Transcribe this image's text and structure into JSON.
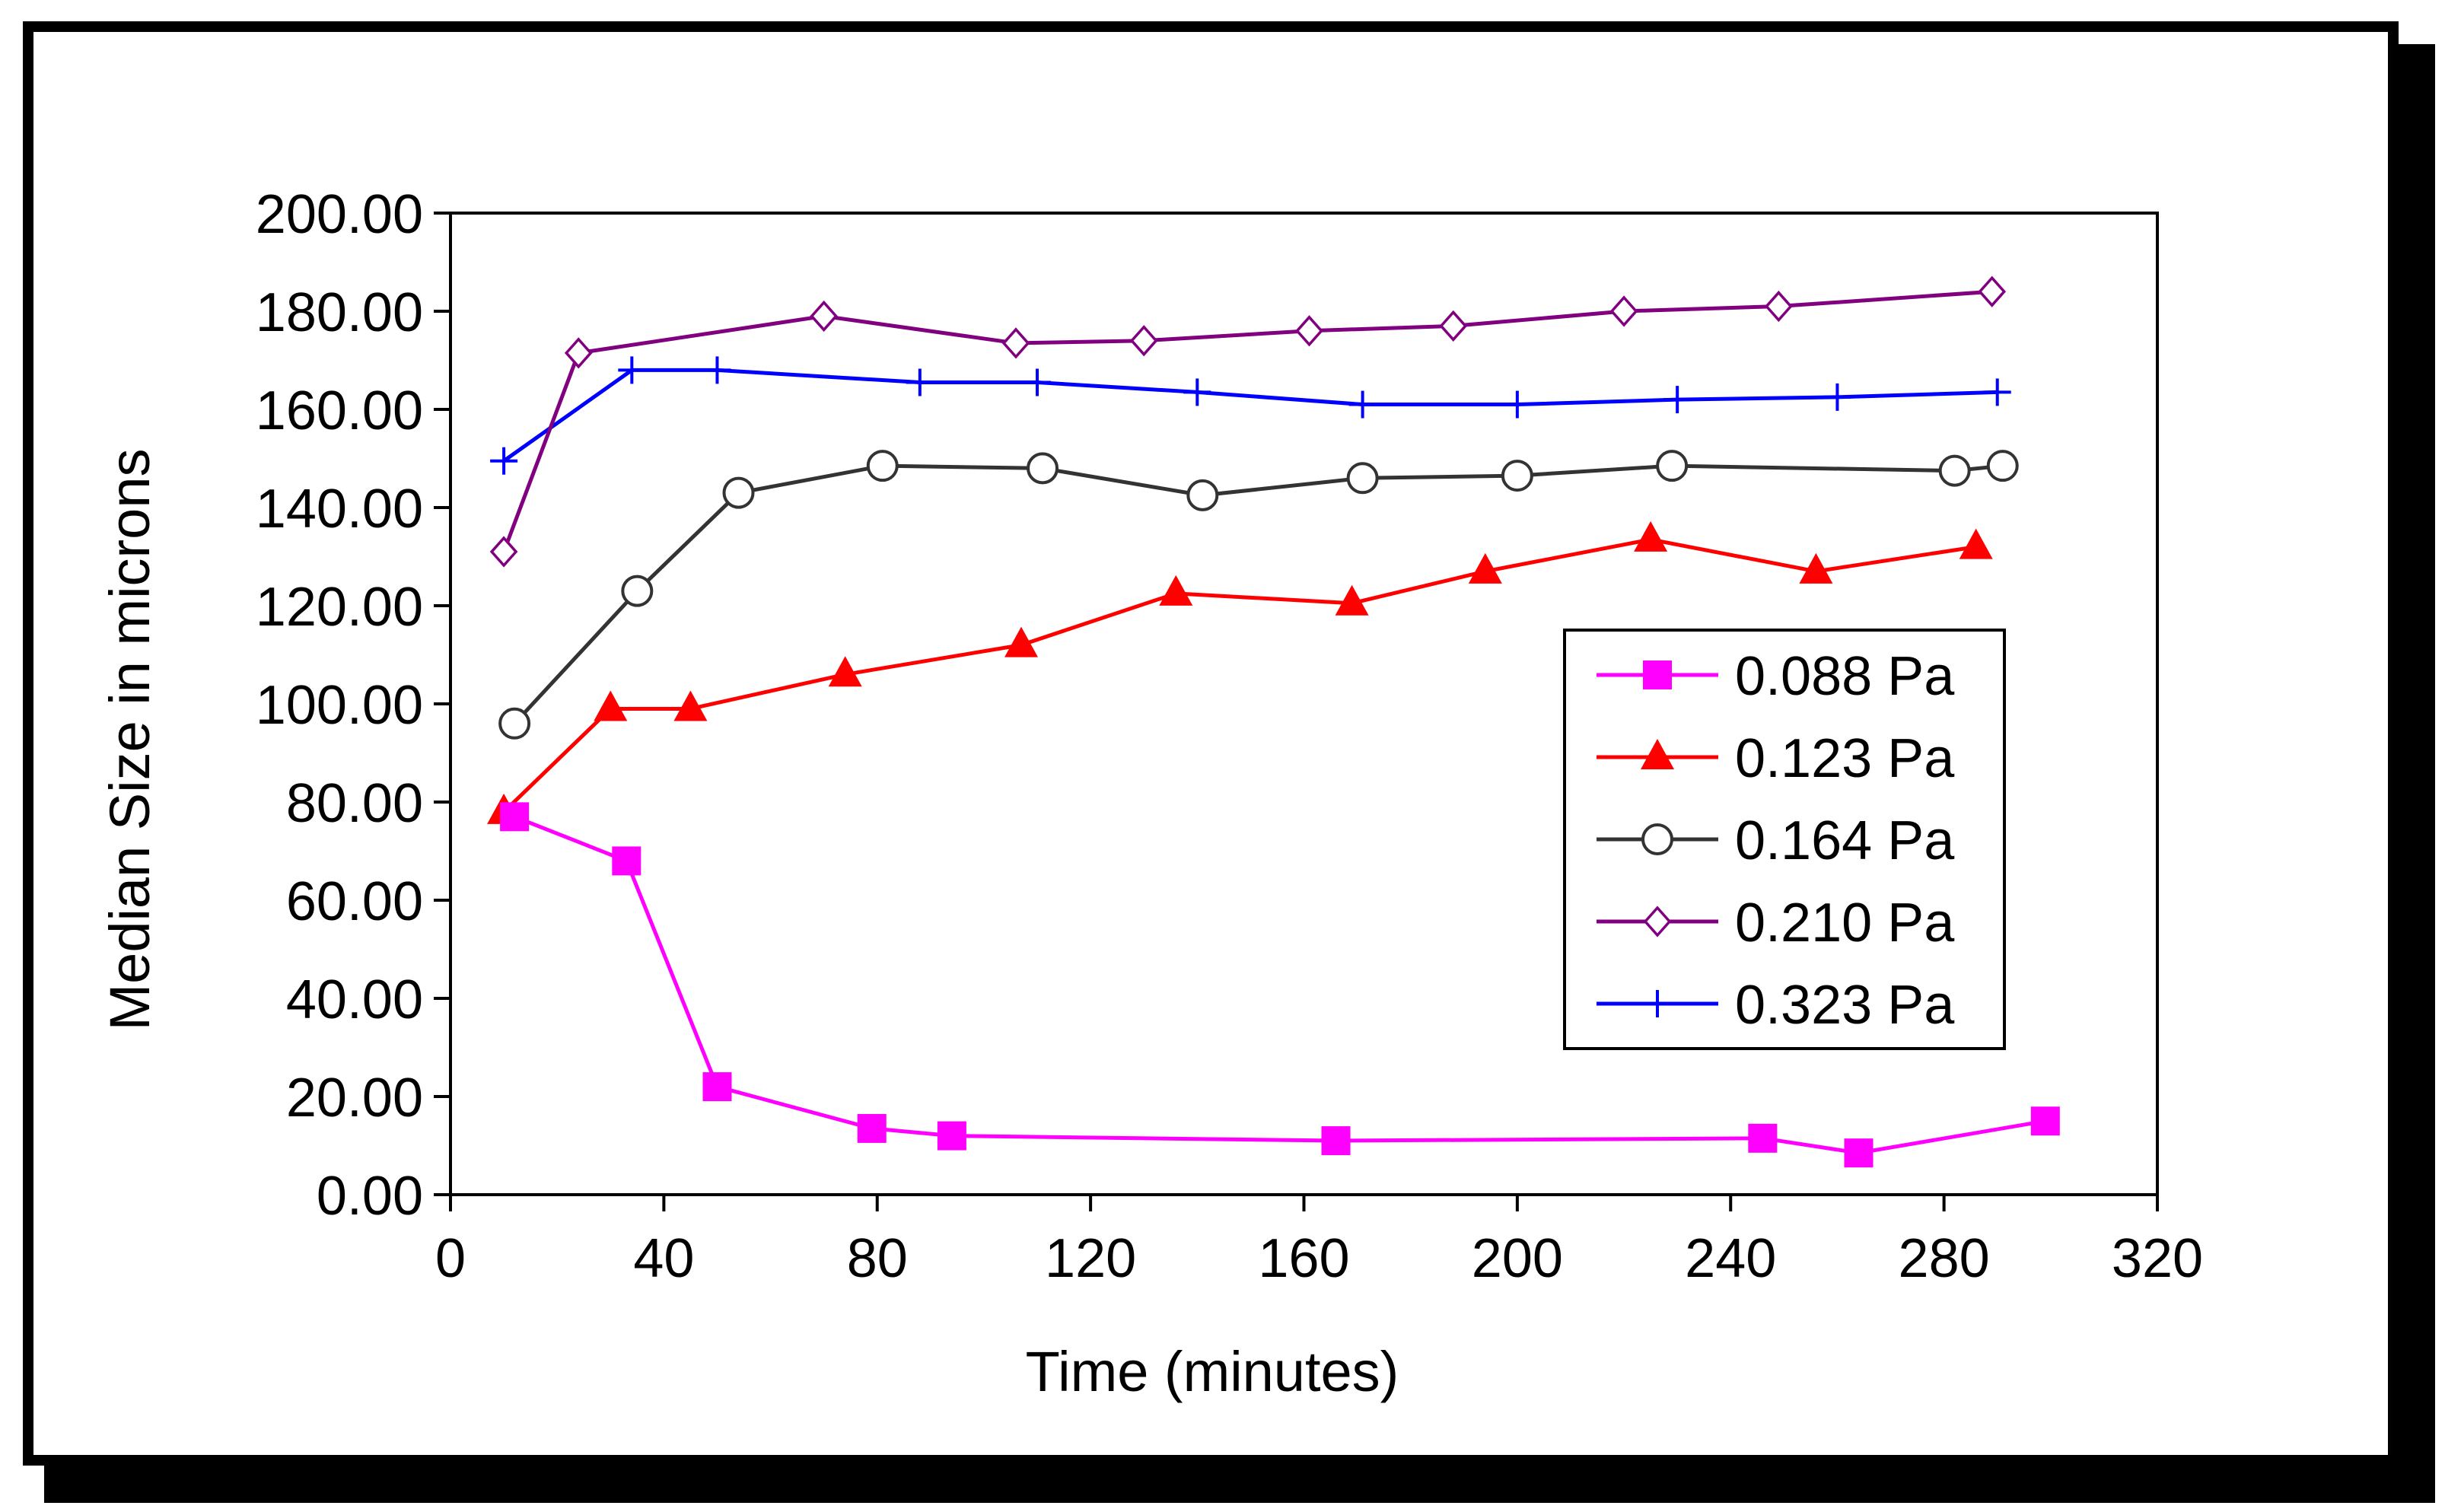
{
  "chart_data": {
    "type": "line",
    "title": "",
    "xlabel": "Time (minutes)",
    "ylabel": "Median Size in microns",
    "xlim": [
      0,
      320
    ],
    "ylim": [
      0,
      200
    ],
    "x_ticks": [
      0,
      40,
      80,
      120,
      160,
      200,
      240,
      280,
      320
    ],
    "y_ticks": [
      0,
      20,
      40,
      60,
      80,
      100,
      120,
      140,
      160,
      180,
      200
    ],
    "y_tick_labels": [
      "0.00",
      "20.00",
      "40.00",
      "60.00",
      "80.00",
      "100.00",
      "120.00",
      "140.00",
      "160.00",
      "180.00",
      "200.00"
    ],
    "legend_position": "right-middle",
    "series": [
      {
        "name": "0.088 Pa",
        "color": "#ff00ff",
        "marker": "filled-square",
        "x": [
          12,
          33,
          50,
          79,
          94,
          166,
          246,
          264,
          299
        ],
        "y": [
          77,
          68,
          22,
          13.5,
          12,
          11,
          11.5,
          8.5,
          15
        ]
      },
      {
        "name": "0.123 Pa",
        "color": "#ff0000",
        "marker": "filled-triangle",
        "x": [
          10,
          30,
          45,
          74,
          107,
          136,
          169,
          194,
          225,
          256,
          286
        ],
        "y": [
          78,
          99,
          99,
          106,
          112,
          122.5,
          120.5,
          127,
          133.5,
          127,
          132
        ]
      },
      {
        "name": "0.164 Pa",
        "color": "#333333",
        "marker": "open-circle",
        "x": [
          12,
          35,
          54,
          81,
          111,
          141,
          171,
          200,
          229,
          282,
          291
        ],
        "y": [
          96,
          123,
          143,
          148.5,
          148,
          142.5,
          146,
          146.5,
          148.5,
          147.5,
          148.5
        ]
      },
      {
        "name": "0.210 Pa",
        "color": "#800080",
        "marker": "open-diamond",
        "x": [
          10,
          24,
          70,
          106,
          130,
          161,
          188,
          220,
          249,
          289
        ],
        "y": [
          131,
          171.5,
          179,
          173.5,
          174,
          176,
          177,
          180,
          181,
          184
        ]
      },
      {
        "name": "0.323 Pa",
        "color": "#0000ff",
        "marker": "plus",
        "x": [
          10,
          34,
          50,
          88,
          110,
          140,
          171,
          200,
          230,
          260,
          290
        ],
        "y": [
          149.5,
          168,
          168,
          165.5,
          165.5,
          163.5,
          161,
          161,
          162,
          162.5,
          163.5
        ]
      }
    ]
  }
}
